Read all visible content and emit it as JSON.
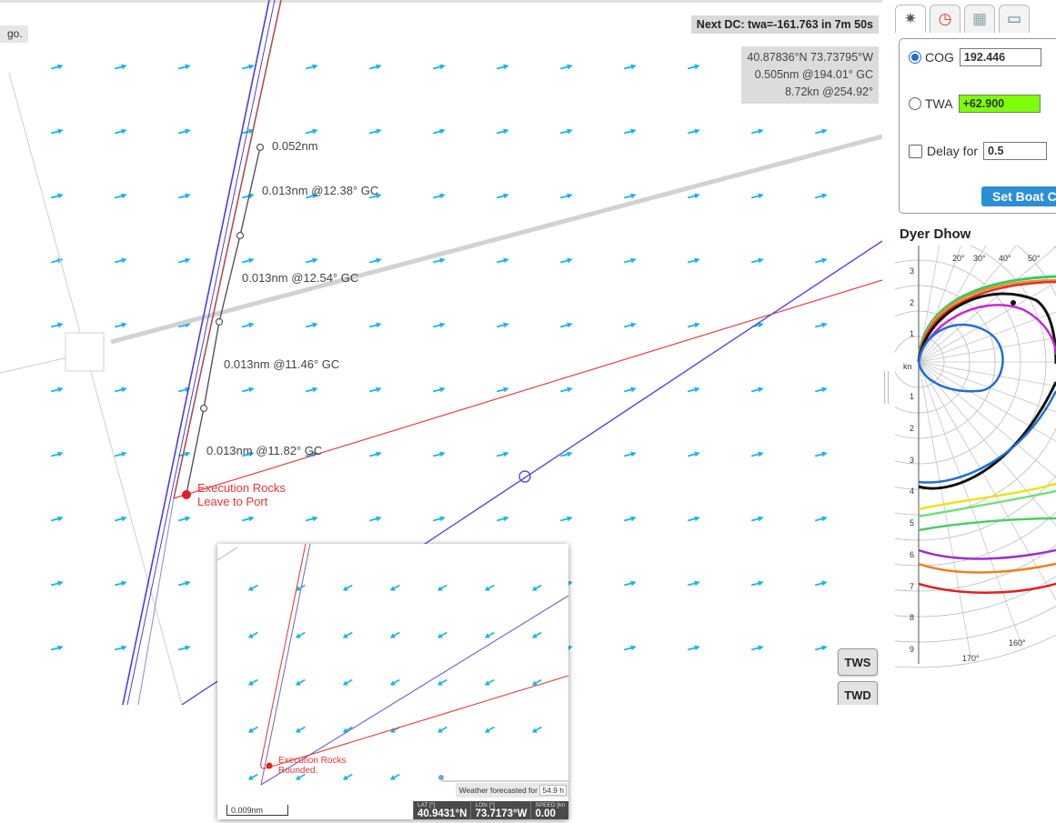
{
  "map": {
    "corner_label": "go.",
    "next_dc": "Next DC: twa=-161.763 in 7m 50s",
    "position": {
      "latlon": "40.87836°N 73.73795°W",
      "distance": "0.505nm @194.01° GC",
      "speed": "8.72kn @254.92°"
    },
    "track_labels": [
      "0.052nm",
      "0.013nm @12.38° GC",
      "0.013nm @12.54° GC",
      "0.013nm @11.46° GC",
      "0.013nm @11.82° GC"
    ],
    "mark": {
      "line1": "Execution Rocks",
      "line2": "Leave to Port"
    },
    "buttons": {
      "tws": "TWS",
      "twd": "TWD"
    }
  },
  "inset": {
    "mark": {
      "line1": "Execution Rocks",
      "line2": "Rounded."
    },
    "scale": "0.009nm",
    "weather_label": "Weather forecasted for",
    "weather_value": "54.9 h",
    "readout": {
      "lat_title": "LAT [°]",
      "lat": "40.9431°N",
      "lon_title": "LON [°]",
      "lon": "73.7173°W",
      "speed_title": "SPEED [kn",
      "speed": "0.00"
    }
  },
  "panel": {
    "tabs": [
      {
        "icon": "gear-icon",
        "glyph": "✷"
      },
      {
        "icon": "clock-icon",
        "glyph": "◷"
      },
      {
        "icon": "chart-icon",
        "glyph": "▦"
      },
      {
        "icon": "comment-icon",
        "glyph": "▭"
      }
    ],
    "cog_label": "COG",
    "cog_value": "192.446",
    "twa_label": "TWA",
    "twa_value": "+62.900",
    "delay_label": "Delay for",
    "delay_value": "0.5",
    "set_button": "Set Boat Co",
    "boat_name": "Dyer Dhow",
    "polar": {
      "top_angles": [
        "20°",
        "30°",
        "40°",
        "50°"
      ],
      "bottom_angles": [
        "170°",
        "160°"
      ],
      "speed_ticks": [
        "3",
        "2",
        "1",
        "kn",
        "1",
        "2",
        "3",
        "4",
        "5",
        "6",
        "7",
        "8",
        "9"
      ]
    }
  },
  "colors": {
    "wind_arrow": "#1cb5e0",
    "mark": "#e02020",
    "route_blue": "#4a3cf0",
    "route_red": "#e84040"
  }
}
